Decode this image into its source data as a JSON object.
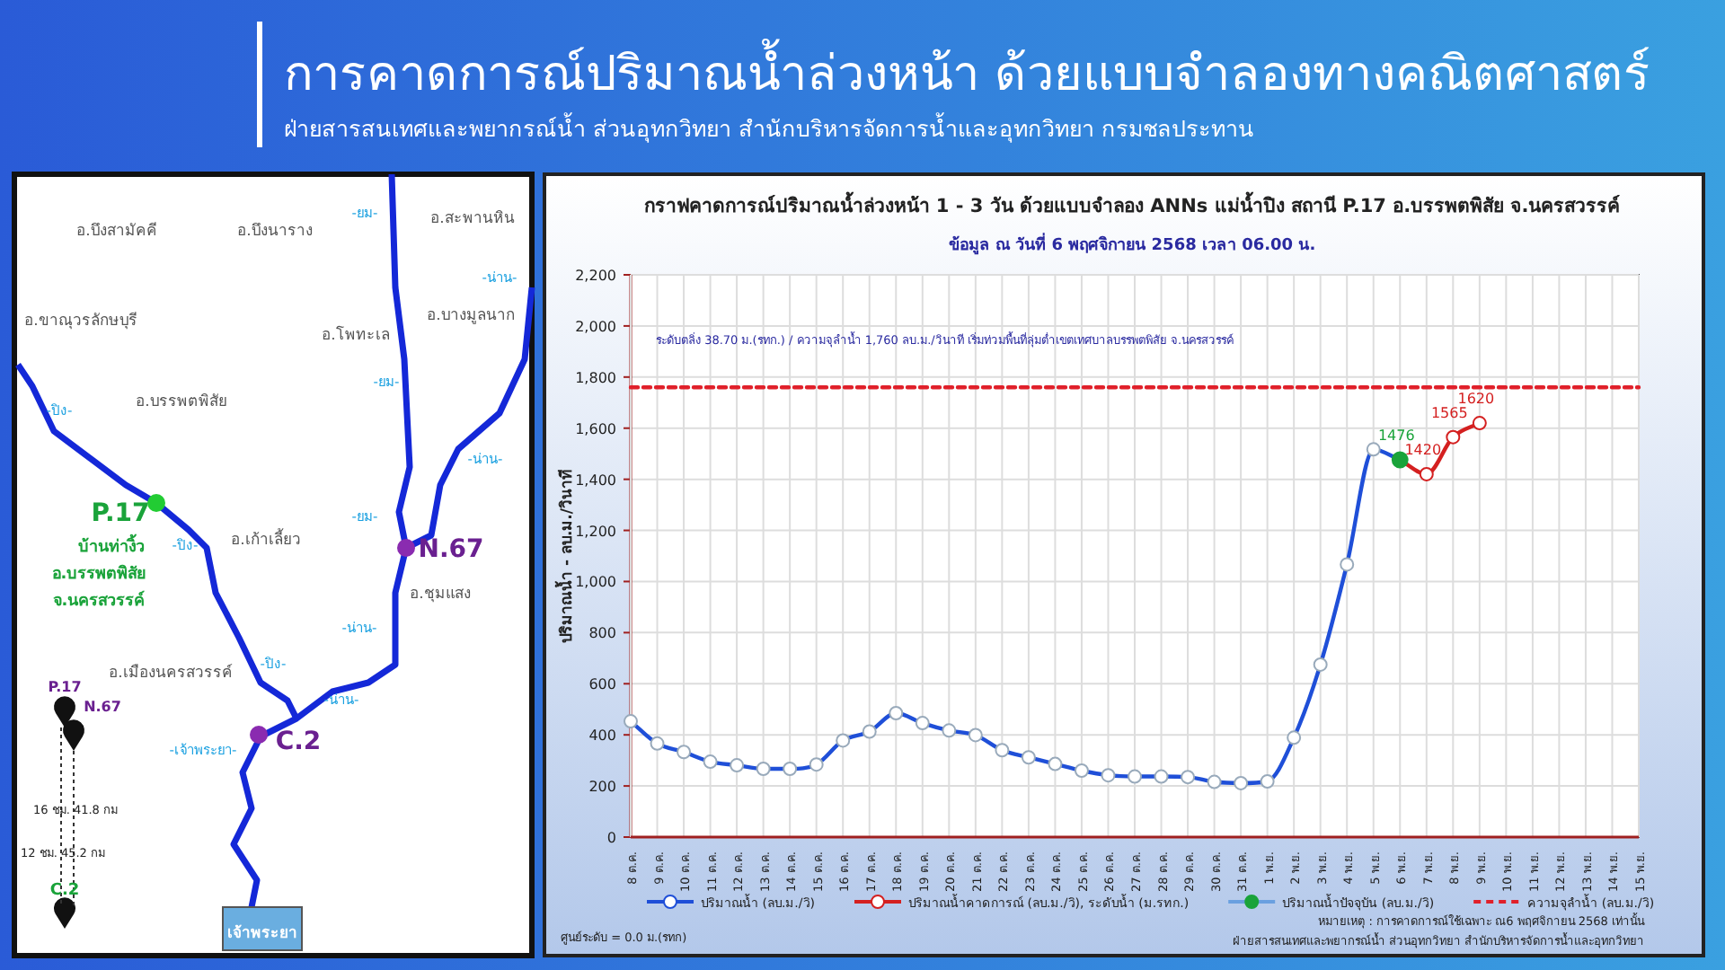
{
  "chart_data": [
    {
      "type": "other",
      "title": "การคาดการณ์ปริมาณน้ำล่วงหน้า ด้วยแบบจำลองทางคณิตศาสตร์",
      "subtitle": "ฝ่ายสารสนเทศและพยากรณ์น้ำ ส่วนอุทกวิทยา สำนักบริหารจัดการน้ำและอุทกวิทยา กรมชลประทาน",
      "annotations": [
        "อ.บึงสามัคคี",
        "อ.บึงนาราง",
        "อ.สะพานหิน",
        "อ.ขาณุวรลักษบุรี",
        "อ.โพทะเล",
        "อ.บางมูลนาก",
        "อ.บรรพตพิสัย",
        "อ.เก้าเลี้ยว",
        "อ.ชุมแสง",
        "อ.เมืองนครสวรรค์",
        "-ยม-",
        "-ยม-",
        "-ยม-",
        "-น่าน-",
        "-น่าน-",
        "-น่าน-",
        "-น่าน-",
        "-ปิง-",
        "-ปิง-",
        "-ปิง-",
        "-เจ้าพระยา-",
        "P.17",
        "บ้านท่างิ้ว",
        "อ.บรรพตพิสัย",
        "จ.นครสวรรค์",
        "N.67",
        "C.2",
        "P.17",
        "N.67",
        "16 ชม. 41.8 กม",
        "12 ชม. 45.2 กม",
        "C.2",
        "เจ้าพระยา"
      ]
    },
    {
      "type": "line",
      "title": "กราฟคาดการณ์ปริมาณน้ำล่วงหน้า 1 - 3 วัน  ด้วยแบบจำลอง ANNs แม่น้ำปิง สถานี P.17 อ.บรรพตพิสัย จ.นครสวรรค์",
      "subtitle": "ข้อมูล ณ วันที่   6 พฤศจิกายน 2568   เวลา 06.00 น.",
      "ylabel": "ปริมาณน้ำ - ลบ.ม./วินาที",
      "categories": [
        "8 ต.ค.",
        "9 ต.ค.",
        "10 ต.ค.",
        "11 ต.ค.",
        "12 ต.ค.",
        "13 ต.ค.",
        "14 ต.ค.",
        "15 ต.ค.",
        "16 ต.ค.",
        "17 ต.ค.",
        "18 ต.ค.",
        "19 ต.ค.",
        "20 ต.ค.",
        "21 ต.ค.",
        "22 ต.ค.",
        "23 ต.ค.",
        "24 ต.ค.",
        "25 ต.ค.",
        "26 ต.ค.",
        "27 ต.ค.",
        "28 ต.ค.",
        "29 ต.ค.",
        "30 ต.ค.",
        "31 ต.ค.",
        "1 พ.ย.",
        "2 พ.ย.",
        "3 พ.ย.",
        "4 พ.ย.",
        "5 พ.ย.",
        "6 พ.ย.",
        "7 พ.ย.",
        "8 พ.ย.",
        "9 พ.ย.",
        "10 พ.ย.",
        "11 พ.ย.",
        "12 พ.ย.",
        "13 พ.ย.",
        "14 พ.ย.",
        "15 พ.ย."
      ],
      "series": [
        {
          "name": "ปริมาณน้ำ (ลบ.ม./วิ)",
          "color": "#1f4fd8",
          "values": [
            453,
            366,
            333,
            295,
            281,
            267,
            267,
            284,
            378,
            413,
            485,
            446,
            417,
            399,
            340,
            312,
            286,
            260,
            242,
            237,
            237,
            235,
            216,
            211,
            218,
            389,
            675,
            1067,
            1517,
            1476,
            null,
            null,
            null,
            null,
            null,
            null,
            null,
            null,
            null
          ]
        },
        {
          "name": "ปริมาณน้ำคาดการณ์  (ลบ.ม./วิ), ระดับน้ำ (ม.รทก.)",
          "color": "#d42020",
          "values": [
            null,
            null,
            null,
            null,
            null,
            null,
            null,
            null,
            null,
            null,
            null,
            null,
            null,
            null,
            null,
            null,
            null,
            null,
            null,
            null,
            null,
            null,
            null,
            null,
            null,
            null,
            null,
            null,
            null,
            1476,
            1420,
            1565,
            1620,
            null,
            null,
            null,
            null,
            null,
            null
          ],
          "value_labels": [
            null,
            null,
            null,
            null,
            null,
            null,
            null,
            null,
            null,
            null,
            null,
            null,
            null,
            null,
            null,
            null,
            null,
            null,
            null,
            null,
            null,
            null,
            null,
            null,
            null,
            null,
            null,
            null,
            null,
            null,
            "1420",
            "1565",
            "1620",
            null,
            null,
            null,
            null,
            null,
            null
          ]
        },
        {
          "name": "ปริมาณน้ำปัจจุบัน   (ลบ.ม./วิ)",
          "color": "#1aa33a",
          "values": [
            null,
            null,
            null,
            null,
            null,
            null,
            null,
            null,
            null,
            null,
            null,
            null,
            null,
            null,
            null,
            null,
            null,
            null,
            null,
            null,
            null,
            null,
            null,
            null,
            null,
            null,
            null,
            null,
            null,
            1476,
            null,
            null,
            null,
            null,
            null,
            null,
            null,
            null,
            null
          ],
          "value_labels": [
            null,
            null,
            null,
            null,
            null,
            null,
            null,
            null,
            null,
            null,
            null,
            null,
            null,
            null,
            null,
            null,
            null,
            null,
            null,
            null,
            null,
            null,
            null,
            null,
            null,
            null,
            null,
            null,
            null,
            "1476",
            null,
            null,
            null,
            null,
            null,
            null,
            null,
            null,
            null
          ]
        },
        {
          "name": "ความจุลำน้ำ   (ลบ.ม./วิ)",
          "color": "#e0202a",
          "marker": "none",
          "line_style": "dashed",
          "values": [
            1760,
            1760,
            1760,
            1760,
            1760,
            1760,
            1760,
            1760,
            1760,
            1760,
            1760,
            1760,
            1760,
            1760,
            1760,
            1760,
            1760,
            1760,
            1760,
            1760,
            1760,
            1760,
            1760,
            1760,
            1760,
            1760,
            1760,
            1760,
            1760,
            1760,
            1760,
            1760,
            1760,
            1760,
            1760,
            1760,
            1760,
            1760,
            1760
          ]
        }
      ],
      "marker": "circle",
      "line_style": "solid",
      "grid": true,
      "legend": "bottom",
      "ylim": [
        0,
        2200
      ],
      "yticks": [
        0,
        200,
        400,
        600,
        800,
        {
          "value": 1000,
          "label": "1,000"
        },
        {
          "value": 1200,
          "label": "1,200"
        },
        {
          "value": 1400,
          "label": "1,400"
        },
        {
          "value": 1600,
          "label": "1,600"
        },
        {
          "value": 1800,
          "label": "1,800"
        },
        {
          "value": 2000,
          "label": "2,000"
        },
        {
          "value": 2200,
          "label": "2,200"
        }
      ],
      "annotations": [
        "ระดับตลิ่ง 38.70 ม.(รทก.) / ความจุลำน้ำ 1,760 ลบ.ม./วินาที   เริ่มท่วมพื้นที่ลุ่มต่ำเขตเทศบาลบรรพตพิสัย จ.นครสวรรค์",
        "ศูนย์ระดับ = 0.0 ม.(รทก)",
        "หมายเหตุ : การคาดการณ์ใช้เฉพาะ ณ6 พฤศจิกายน 2568 เท่านั้น",
        "ฝ่ายสารสนเทศและพยากรณ์น้ำ ส่วนอุทกวิทยา สำนักบริหารจัดการน้ำและอุทกวิทยา"
      ]
    }
  ]
}
